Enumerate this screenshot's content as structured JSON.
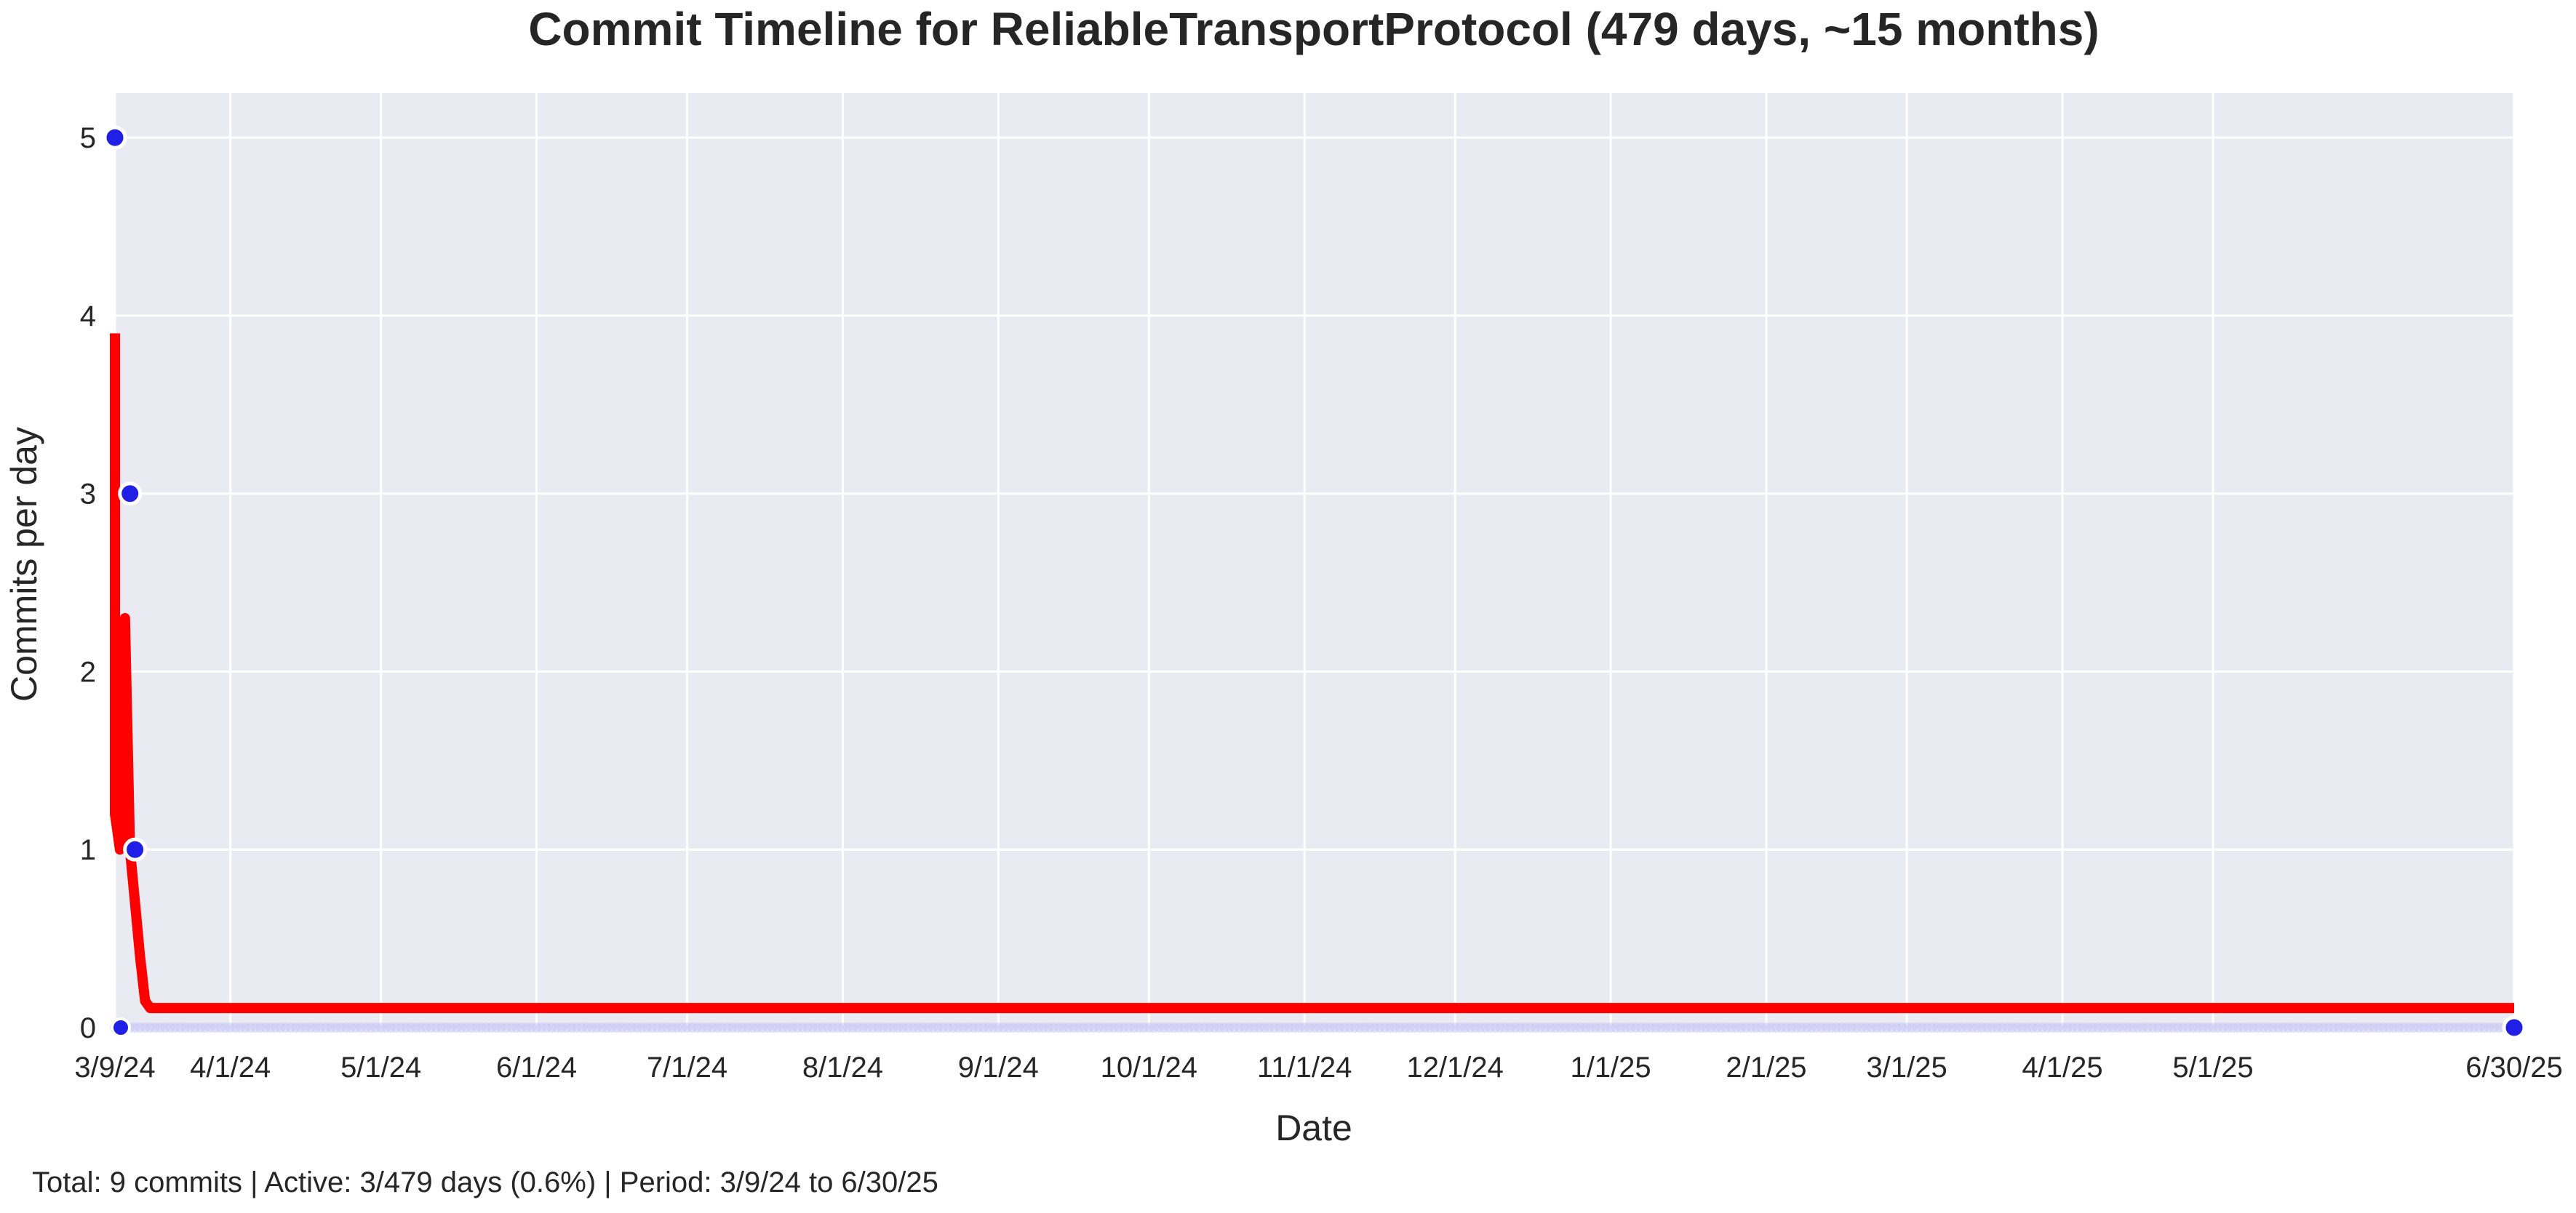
{
  "chart_data": {
    "type": "line",
    "title": "Commit Timeline for ReliableTransportProtocol (479 days, ~15 months)",
    "xlabel": "Date",
    "ylabel": "Commits per day",
    "x_range": [
      "2024-03-09",
      "2025-06-30"
    ],
    "ylim": [
      0,
      5.25
    ],
    "grid": true,
    "x_ticks": [
      {
        "date": "2024-03-09",
        "label": "3/9/24"
      },
      {
        "date": "2024-04-01",
        "label": "4/1/24"
      },
      {
        "date": "2024-05-01",
        "label": "5/1/24"
      },
      {
        "date": "2024-06-01",
        "label": "6/1/24"
      },
      {
        "date": "2024-07-01",
        "label": "7/1/24"
      },
      {
        "date": "2024-08-01",
        "label": "8/1/24"
      },
      {
        "date": "2024-09-01",
        "label": "9/1/24"
      },
      {
        "date": "2024-10-01",
        "label": "10/1/24"
      },
      {
        "date": "2024-11-01",
        "label": "11/1/24"
      },
      {
        "date": "2024-12-01",
        "label": "12/1/24"
      },
      {
        "date": "2025-01-01",
        "label": "1/1/25"
      },
      {
        "date": "2025-02-01",
        "label": "2/1/25"
      },
      {
        "date": "2025-03-01",
        "label": "3/1/25"
      },
      {
        "date": "2025-04-01",
        "label": "4/1/25"
      },
      {
        "date": "2025-05-01",
        "label": "5/1/25"
      },
      {
        "date": "2025-06-30",
        "label": "6/30/25"
      }
    ],
    "y_ticks": [
      0,
      1,
      2,
      3,
      4,
      5
    ],
    "series": [
      {
        "kind": "daily-commits",
        "color": "#1f1fe6",
        "points": [
          {
            "date": "2024-03-09",
            "value": 5
          },
          {
            "date": "2024-03-12",
            "value": 3
          },
          {
            "date": "2024-03-13",
            "value": 1
          },
          {
            "date": "2025-06-30",
            "value": 0
          }
        ],
        "zero_days_faint": true
      },
      {
        "kind": "trend",
        "color": "#ff0000",
        "points": [
          {
            "date": "2024-03-09",
            "value": 3.9
          },
          {
            "date": "2024-03-09",
            "value": 1.2
          },
          {
            "date": "2024-03-10",
            "value": 1.0
          },
          {
            "date": "2024-03-11",
            "value": 2.3
          },
          {
            "date": "2024-03-12",
            "value": 1.0
          },
          {
            "date": "2024-03-14",
            "value": 0.4
          },
          {
            "date": "2024-03-15",
            "value": 0.15
          },
          {
            "date": "2024-03-16",
            "value": 0.11
          },
          {
            "date": "2025-06-30",
            "value": 0.11
          }
        ]
      }
    ]
  },
  "footer": {
    "summary": "Total: 9 commits | Active: 3/479 days (0.6%) | Period: 3/9/24 to 6/30/25"
  },
  "colors": {
    "plot_background": "#eaeaf2",
    "grid": "#ffffff",
    "trend": "#ff0000",
    "points": "#1f1fe6"
  }
}
